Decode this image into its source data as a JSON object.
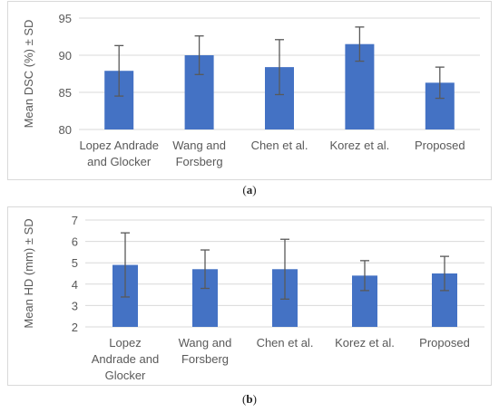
{
  "chart_data": [
    {
      "type": "bar",
      "categories": [
        [
          "Lopez Andrade",
          "and Glocker"
        ],
        [
          "Wang and",
          "Forsberg"
        ],
        [
          "Chen et al."
        ],
        [
          "Korez et al."
        ],
        [
          "Proposed"
        ]
      ],
      "series": [
        {
          "values": [
            87.9,
            90.0,
            88.4,
            91.5,
            86.3
          ],
          "error": [
            3.4,
            2.6,
            3.7,
            2.3,
            2.1
          ]
        }
      ],
      "xlabel": "",
      "ylabel": "Mean DSC (%) ± SD",
      "ylim": [
        80,
        95
      ],
      "yticks": [
        80,
        85,
        90,
        95
      ],
      "grid": true,
      "colors": {
        "bar": "#4472C4",
        "error": "#595959",
        "grid": "#d9d9d9"
      }
    },
    {
      "type": "bar",
      "categories": [
        [
          "Lopez",
          "Andrade and",
          "Glocker"
        ],
        [
          "Wang and",
          "Forsberg"
        ],
        [
          "Chen et al."
        ],
        [
          "Korez et al."
        ],
        [
          "Proposed"
        ]
      ],
      "series": [
        {
          "values": [
            4.9,
            4.7,
            4.7,
            4.4,
            4.5
          ],
          "error": [
            1.5,
            0.9,
            1.4,
            0.7,
            0.8
          ]
        }
      ],
      "xlabel": "",
      "ylabel": "Mean HD (mm) ± SD",
      "ylim": [
        2,
        7
      ],
      "yticks": [
        2,
        3,
        4,
        5,
        6,
        7
      ],
      "grid": true,
      "colors": {
        "bar": "#4472C4",
        "error": "#595959",
        "grid": "#d9d9d9"
      }
    }
  ],
  "captions": {
    "a_open": "(",
    "a_letter": "a",
    "a_close": ")",
    "b_open": "(",
    "b_letter": "b",
    "b_close": ")"
  }
}
